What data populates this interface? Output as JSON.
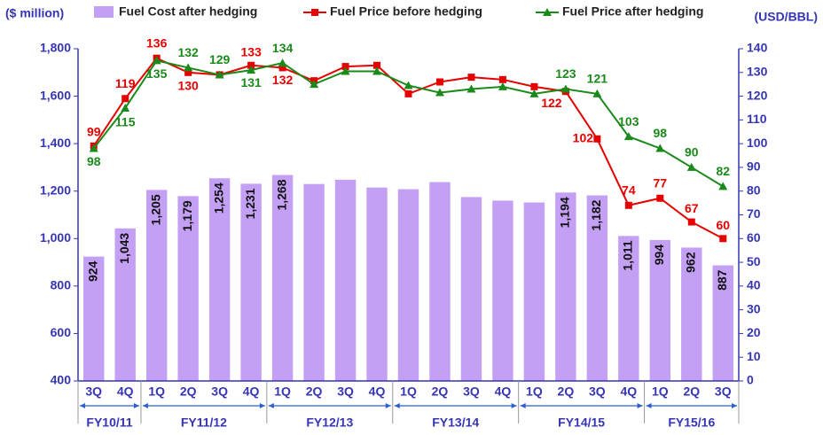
{
  "chart_data": {
    "type": "bar",
    "y_label": "($ million)",
    "y2_label": "(USD/BBL)",
    "categories": [
      "3Q",
      "4Q",
      "1Q",
      "2Q",
      "3Q",
      "4Q",
      "1Q",
      "2Q",
      "3Q",
      "4Q",
      "1Q",
      "2Q",
      "3Q",
      "4Q",
      "1Q",
      "2Q",
      "3Q",
      "4Q",
      "1Q",
      "2Q",
      "3Q"
    ],
    "groups": [
      "FY10/11",
      "FY11/12",
      "FY12/13",
      "FY13/14",
      "FY14/15",
      "FY15/16"
    ],
    "series": [
      {
        "name": "Fuel Cost after hedging",
        "type": "bar",
        "color": "#c4a0f4",
        "values": [
          924,
          1043,
          1205,
          1179,
          1254,
          1231,
          1268,
          1230,
          1248,
          1215,
          1208,
          1238,
          1175,
          1160,
          1152,
          1194,
          1182,
          1011,
          994,
          962,
          887
        ],
        "value_labels": [
          "924",
          "1,043",
          "1,205",
          "1,179",
          "1,254",
          "1,231",
          "1,268",
          null,
          null,
          null,
          null,
          null,
          null,
          null,
          null,
          "1,194",
          "1,182",
          "1,011",
          "994",
          "962",
          "887"
        ]
      },
      {
        "name": "Fuel Price before hedging",
        "type": "line",
        "axis": "y2",
        "color": "#e60000",
        "values": [
          99,
          119,
          136,
          130,
          129,
          133,
          132,
          126.5,
          132.5,
          133,
          121,
          126,
          128,
          127,
          124,
          122,
          102,
          74,
          77,
          67,
          60
        ],
        "value_labels": [
          "99",
          "119",
          "136",
          "130",
          null,
          "133",
          "132",
          null,
          null,
          null,
          null,
          null,
          null,
          null,
          null,
          "122",
          "102",
          "74",
          "77",
          "67",
          "60"
        ]
      },
      {
        "name": "Fuel Price after hedging",
        "type": "line",
        "axis": "y2",
        "color": "#1a8a1a",
        "values": [
          98,
          115,
          135,
          132,
          129,
          131,
          134,
          125,
          130.5,
          130.5,
          124.5,
          121.5,
          123,
          124,
          121,
          123,
          121,
          103,
          98,
          90,
          82
        ],
        "value_labels": [
          "98",
          "115",
          "135",
          "132",
          "129",
          "131",
          "134",
          null,
          null,
          null,
          null,
          null,
          null,
          null,
          null,
          "123",
          "121",
          "103",
          "98",
          "90",
          "82"
        ]
      }
    ],
    "ylim": [
      400,
      1800
    ],
    "yticks": [
      400,
      600,
      800,
      {
        "value": 1000,
        "label": "1,000"
      },
      {
        "value": 1200,
        "label": "1,200"
      },
      {
        "value": 1400,
        "label": "1,400"
      },
      {
        "value": 1600,
        "label": "1,600"
      },
      {
        "value": 1800,
        "label": "1,800"
      }
    ],
    "y2lim": [
      0,
      140
    ],
    "y2ticks": [
      0,
      10,
      20,
      30,
      40,
      50,
      60,
      70,
      80,
      90,
      100,
      110,
      120,
      130,
      140
    ]
  }
}
